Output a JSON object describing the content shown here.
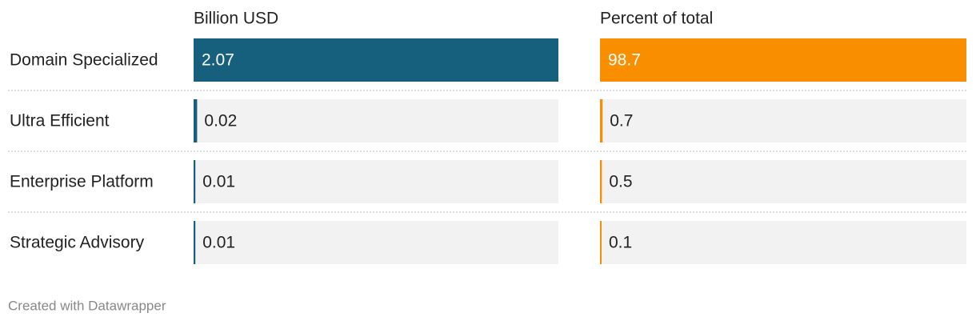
{
  "chart_data": {
    "type": "bar",
    "categories": [
      "Domain Specialized",
      "Ultra Efficient",
      "Enterprise Platform",
      "Strategic Advisory"
    ],
    "series": [
      {
        "name": "Billion USD",
        "color": "#17607d",
        "values": [
          2.07,
          0.02,
          0.01,
          0.01
        ],
        "xlim": [
          0,
          2.07
        ]
      },
      {
        "name": "Percent of total",
        "color": "#f98e00",
        "values": [
          98.7,
          0.7,
          0.5,
          0.1
        ],
        "xlim": [
          0,
          98.7
        ]
      }
    ]
  },
  "credit": "Created with Datawrapper"
}
